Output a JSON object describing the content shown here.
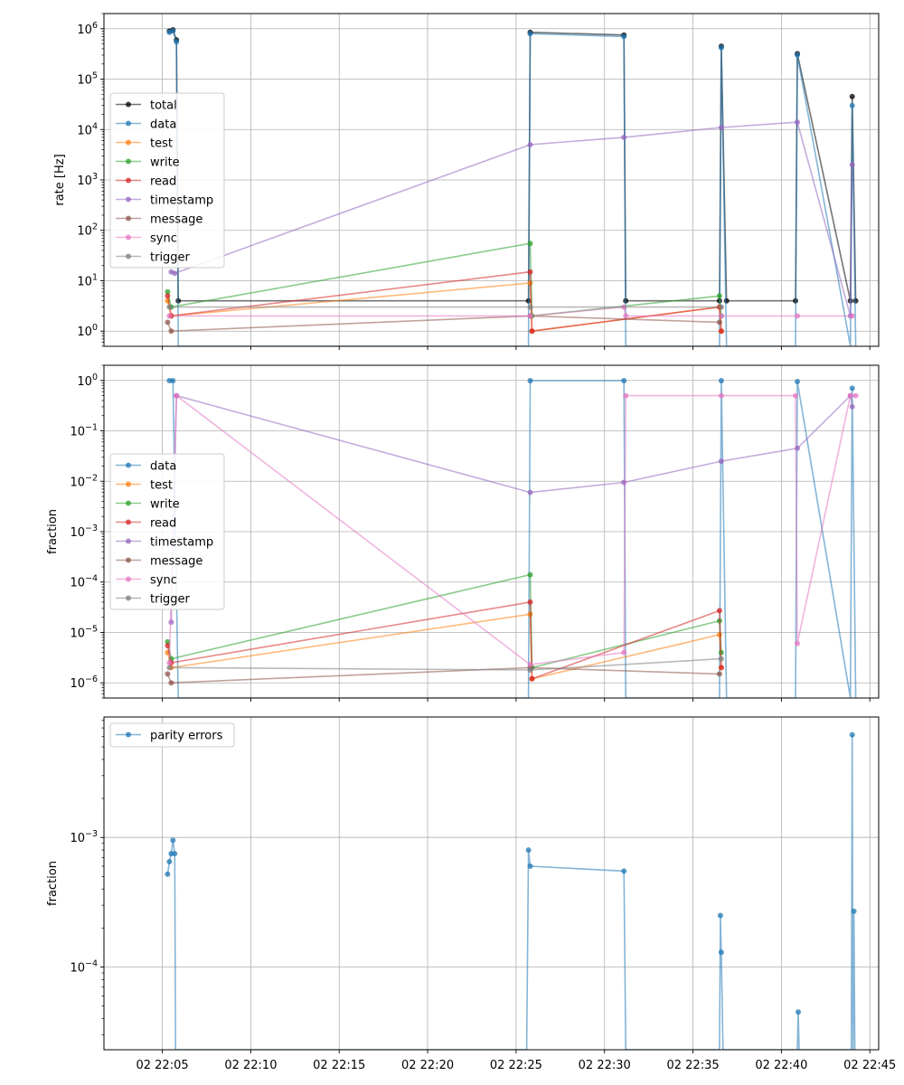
{
  "chart_data": [
    {
      "type": "line",
      "ylabel": "rate [Hz]",
      "yscale": "log",
      "ylim": [
        0.5,
        2000000
      ],
      "yticks": [
        {
          "v": 1,
          "label": "10^0"
        },
        {
          "v": 10,
          "label": "10^1"
        },
        {
          "v": 100,
          "label": "10^2"
        },
        {
          "v": 1000,
          "label": "10^3"
        },
        {
          "v": 10000,
          "label": "10^4"
        },
        {
          "v": 100000,
          "label": "10^5"
        },
        {
          "v": 1000000,
          "label": "10^6"
        }
      ],
      "x_ticks_shown": false,
      "legend_loc": "center-left",
      "series": [
        {
          "name": "total",
          "color": "#000000",
          "points": [
            [
              5.4,
              900000
            ],
            [
              5.6,
              950000
            ],
            [
              5.8,
              600000
            ],
            [
              5.9,
              4
            ],
            [
              25.7,
              4
            ],
            [
              25.8,
              850000
            ],
            [
              31.1,
              750000
            ],
            [
              31.2,
              4
            ],
            [
              36.5,
              4
            ],
            [
              36.6,
              450000
            ],
            [
              36.9,
              4
            ],
            [
              40.8,
              4
            ],
            [
              40.9,
              320000
            ],
            [
              43.9,
              4
            ],
            [
              44.0,
              45000
            ],
            [
              44.2,
              4
            ]
          ]
        },
        {
          "name": "data",
          "color": "#1f77b4",
          "points": [
            [
              5.4,
              850000
            ],
            [
              5.6,
              900000
            ],
            [
              5.8,
              550000
            ],
            [
              5.9,
              0.5
            ],
            [
              25.7,
              0.5
            ],
            [
              25.8,
              800000
            ],
            [
              31.1,
              700000
            ],
            [
              31.2,
              0.5
            ],
            [
              36.5,
              0.5
            ],
            [
              36.6,
              420000
            ],
            [
              36.9,
              0.5
            ],
            [
              40.8,
              0.5
            ],
            [
              40.9,
              300000
            ],
            [
              43.9,
              0.5
            ],
            [
              44.0,
              30000
            ],
            [
              44.2,
              0.5
            ]
          ]
        },
        {
          "name": "test",
          "color": "#ff7f0e",
          "points": [
            [
              5.3,
              4
            ],
            [
              5.5,
              2
            ],
            [
              25.8,
              9
            ],
            [
              25.9,
              1
            ],
            [
              36.5,
              3
            ],
            [
              36.6,
              1
            ]
          ]
        },
        {
          "name": "write",
          "color": "#2ca02c",
          "points": [
            [
              5.3,
              6
            ],
            [
              5.5,
              3
            ],
            [
              25.8,
              55
            ],
            [
              25.9,
              2
            ],
            [
              36.5,
              5
            ],
            [
              36.6,
              2
            ]
          ]
        },
        {
          "name": "read",
          "color": "#d62728",
          "points": [
            [
              5.3,
              5
            ],
            [
              5.5,
              2
            ],
            [
              25.8,
              15
            ],
            [
              25.9,
              1
            ],
            [
              36.5,
              3
            ],
            [
              36.6,
              1
            ]
          ]
        },
        {
          "name": "timestamp",
          "color": "#9467bd",
          "points": [
            [
              5.5,
              15
            ],
            [
              5.7,
              14
            ],
            [
              25.8,
              5000
            ],
            [
              31.1,
              7000
            ],
            [
              36.6,
              11000
            ],
            [
              40.9,
              14000
            ],
            [
              43.9,
              2
            ],
            [
              44.0,
              2000
            ]
          ]
        },
        {
          "name": "message",
          "color": "#8c564b",
          "points": [
            [
              5.3,
              1.5
            ],
            [
              5.5,
              1
            ],
            [
              25.8,
              2
            ],
            [
              36.5,
              1.5
            ]
          ]
        },
        {
          "name": "sync",
          "color": "#e377c2",
          "points": [
            [
              5.4,
              2
            ],
            [
              25.8,
              2
            ],
            [
              31.1,
              3
            ],
            [
              31.2,
              2
            ],
            [
              36.6,
              2
            ],
            [
              40.9,
              2
            ],
            [
              44.0,
              2
            ]
          ]
        },
        {
          "name": "trigger",
          "color": "#7f7f7f",
          "points": [
            [
              5.4,
              3
            ],
            [
              25.8,
              3
            ],
            [
              36.6,
              3
            ]
          ]
        }
      ]
    },
    {
      "type": "line",
      "ylabel": "fraction",
      "yscale": "log",
      "ylim": [
        5e-07,
        2
      ],
      "yticks": [
        {
          "v": 1e-06,
          "label": "10^-6"
        },
        {
          "v": 1e-05,
          "label": "10^-5"
        },
        {
          "v": 0.0001,
          "label": "10^-4"
        },
        {
          "v": 0.001,
          "label": "10^-3"
        },
        {
          "v": 0.01,
          "label": "10^-2"
        },
        {
          "v": 0.1,
          "label": "10^-1"
        },
        {
          "v": 1,
          "label": "10^0"
        }
      ],
      "x_ticks_shown": false,
      "legend_loc": "center-left",
      "series": [
        {
          "name": "data",
          "color": "#1f77b4",
          "points": [
            [
              5.4,
              0.99
            ],
            [
              5.6,
              0.99
            ],
            [
              5.9,
              5e-07
            ],
            [
              25.7,
              5e-07
            ],
            [
              25.8,
              0.99
            ],
            [
              31.1,
              0.99
            ],
            [
              31.2,
              5e-07
            ],
            [
              36.5,
              5e-07
            ],
            [
              36.6,
              0.99
            ],
            [
              36.9,
              5e-07
            ],
            [
              40.8,
              5e-07
            ],
            [
              40.9,
              0.95
            ],
            [
              43.9,
              5e-07
            ],
            [
              44.0,
              0.7
            ],
            [
              44.2,
              5e-07
            ]
          ]
        },
        {
          "name": "test",
          "color": "#ff7f0e",
          "points": [
            [
              5.3,
              4e-06
            ],
            [
              5.5,
              2e-06
            ],
            [
              25.8,
              2.3e-05
            ],
            [
              25.9,
              1.2e-06
            ],
            [
              36.5,
              9e-06
            ],
            [
              36.6,
              2e-06
            ]
          ]
        },
        {
          "name": "write",
          "color": "#2ca02c",
          "points": [
            [
              5.3,
              6.5e-06
            ],
            [
              5.5,
              3e-06
            ],
            [
              25.8,
              0.00014
            ],
            [
              25.9,
              2e-06
            ],
            [
              36.5,
              1.7e-05
            ],
            [
              36.6,
              4e-06
            ]
          ]
        },
        {
          "name": "read",
          "color": "#d62728",
          "points": [
            [
              5.3,
              5.5e-06
            ],
            [
              5.5,
              2.5e-06
            ],
            [
              25.8,
              4e-05
            ],
            [
              25.9,
              1.2e-06
            ],
            [
              36.5,
              2.7e-05
            ],
            [
              36.6,
              2e-06
            ]
          ]
        },
        {
          "name": "timestamp",
          "color": "#9467bd",
          "points": [
            [
              5.5,
              1.6e-05
            ],
            [
              5.8,
              0.5
            ],
            [
              25.8,
              0.006
            ],
            [
              31.1,
              0.0095
            ],
            [
              36.6,
              0.025
            ],
            [
              40.9,
              0.045
            ],
            [
              43.9,
              0.5
            ],
            [
              44.0,
              0.3
            ]
          ]
        },
        {
          "name": "message",
          "color": "#8c564b",
          "points": [
            [
              5.3,
              1.5e-06
            ],
            [
              5.5,
              1e-06
            ],
            [
              25.8,
              2e-06
            ],
            [
              36.5,
              1.5e-06
            ]
          ]
        },
        {
          "name": "sync",
          "color": "#e377c2",
          "points": [
            [
              5.4,
              2.5e-06
            ],
            [
              5.8,
              0.5
            ],
            [
              25.8,
              2.3e-06
            ],
            [
              31.1,
              4e-06
            ],
            [
              31.2,
              0.5
            ],
            [
              36.6,
              0.5
            ],
            [
              40.8,
              0.5
            ],
            [
              40.9,
              6e-06
            ],
            [
              43.9,
              0.5
            ],
            [
              44.2,
              0.5
            ]
          ]
        },
        {
          "name": "trigger",
          "color": "#7f7f7f",
          "points": [
            [
              5.4,
              2e-06
            ],
            [
              25.8,
              1.8e-06
            ],
            [
              36.6,
              3e-06
            ]
          ]
        }
      ]
    },
    {
      "type": "line",
      "ylabel": "fraction",
      "yscale": "log",
      "ylim": [
        2.3e-05,
        0.0085
      ],
      "yticks": [
        {
          "v": 0.0001,
          "label": "10^-4"
        },
        {
          "v": 0.001,
          "label": "10^-3"
        }
      ],
      "legend_loc": "upper-left",
      "x_ticks_shown": true,
      "xlim": [
        1.7,
        45.5
      ],
      "xticks": [
        {
          "v": 5,
          "label": "02 22:05"
        },
        {
          "v": 10,
          "label": "02 22:10"
        },
        {
          "v": 15,
          "label": "02 22:15"
        },
        {
          "v": 20,
          "label": "02 22:20"
        },
        {
          "v": 25,
          "label": "02 22:25"
        },
        {
          "v": 30,
          "label": "02 22:30"
        },
        {
          "v": 35,
          "label": "02 22:35"
        },
        {
          "v": 40,
          "label": "02 22:40"
        },
        {
          "v": 45,
          "label": "02 22:45"
        }
      ],
      "series": [
        {
          "name": "parity errors",
          "color": "#1f77b4",
          "points": [
            [
              5.3,
              0.00052
            ],
            [
              5.4,
              0.00065
            ],
            [
              5.5,
              0.00075
            ],
            [
              5.6,
              0.00095
            ],
            [
              5.7,
              0.00075
            ],
            [
              5.75,
              2.3e-05
            ],
            [
              25.6,
              2.3e-05
            ],
            [
              25.7,
              0.0008
            ],
            [
              25.8,
              0.0006
            ],
            [
              31.1,
              0.00055
            ],
            [
              31.2,
              2.3e-05
            ],
            [
              36.5,
              2.3e-05
            ],
            [
              36.55,
              0.00025
            ],
            [
              36.6,
              0.00013
            ],
            [
              36.7,
              2.3e-05
            ],
            [
              40.9,
              2.3e-05
            ],
            [
              40.95,
              4.5e-05
            ],
            [
              41.0,
              2.3e-05
            ],
            [
              43.95,
              2.3e-05
            ],
            [
              44.0,
              0.0062
            ],
            [
              44.05,
              2.3e-05
            ],
            [
              44.1,
              0.00027
            ],
            [
              44.15,
              2.3e-05
            ]
          ]
        }
      ]
    }
  ]
}
